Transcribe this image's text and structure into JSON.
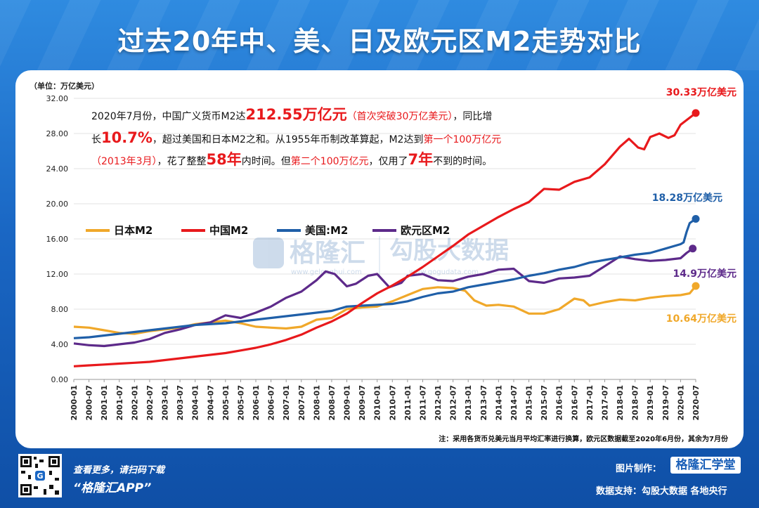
{
  "title": "过去20年中、美、日及欧元区M2走势对比",
  "unit": "（单位：万亿美元）",
  "annotation": {
    "p1": "2020年7月份，中国广义货币M2达",
    "h1": "212.55万亿元",
    "r1": "（首次突破30万亿美元）",
    "p2": "，同比增",
    "p3": "长",
    "h2": "10.7%",
    "p4": "，超过美国和日本M2之和。从1955年币制改革算起，M2达到",
    "r2": "第一个100万亿元",
    "r3": "（2013年3月）",
    "p5": "，花了整整",
    "h3": "58年",
    "p6": "内时间。但",
    "r4": "第二个100万亿元",
    "p7": "，仅用了",
    "h4": "7年",
    "p8": "不到的时间。"
  },
  "watermarks": {
    "a": "格隆汇",
    "a_url": "www.gelonghui.com",
    "b": "勾股大数据",
    "b_url": "www.gogudata.com"
  },
  "end_labels": {
    "china": "30.33万亿美元",
    "usa": "18.28万亿美元",
    "euro": "14.9万亿美元",
    "japan": "10.64万亿美元"
  },
  "note": "注：采用各货币兑美元当月平均汇率进行换算，欧元区数据截至2020年6月份，其余为7月份",
  "footer": {
    "scan_text": "查看更多，请扫码下载",
    "app_text": "“格隆汇APP”",
    "made_by_label": "图片制作：",
    "brand": "格隆汇学堂",
    "data_support": "数据支持：勾股大数据  各地央行"
  },
  "chart_data": {
    "type": "line",
    "title": "过去20年中、美、日及欧元区M2走势对比",
    "ylabel": "万亿美元",
    "ylim": [
      0,
      32
    ],
    "yticks": [
      "0.00",
      "4.00",
      "8.00",
      "12.00",
      "16.00",
      "20.00",
      "24.00",
      "28.00",
      "32.00"
    ],
    "x_start": 2000,
    "x_end": 2020.5,
    "categories": [
      "2000-01",
      "2000-07",
      "2001-01",
      "2001-07",
      "2002-01",
      "2002-07",
      "2003-01",
      "2003-07",
      "2004-01",
      "2004-07",
      "2005-01",
      "2005-07",
      "2006-01",
      "2006-07",
      "2007-01",
      "2007-07",
      "2008-01",
      "2008-07",
      "2009-01",
      "2009-07",
      "2010-01",
      "2010-07",
      "2011-01",
      "2011-07",
      "2012-01",
      "2012-07",
      "2013-01",
      "2013-07",
      "2014-01",
      "2014-07",
      "2015-01",
      "2015-07",
      "2016-01",
      "2016-07",
      "2017-01",
      "2017-07",
      "2018-01",
      "2018-07",
      "2019-01",
      "2019-07",
      "2020-01",
      "2020-07"
    ],
    "series": [
      {
        "name": "日本M2",
        "color": "#f0a82a",
        "x": [
          2000,
          2000.5,
          2001,
          2001.5,
          2002,
          2002.5,
          2003,
          2003.5,
          2004,
          2004.5,
          2005,
          2005.5,
          2006,
          2006.5,
          2007,
          2007.5,
          2008,
          2008.5,
          2009,
          2009.5,
          2010,
          2010.5,
          2011,
          2011.5,
          2012,
          2012.5,
          2012.9,
          2013.2,
          2013.6,
          2014,
          2014.5,
          2015,
          2015.5,
          2016,
          2016.5,
          2016.8,
          2017,
          2017.5,
          2018,
          2018.5,
          2019,
          2019.5,
          2020,
          2020.3,
          2020.5
        ],
        "y": [
          6.0,
          5.9,
          5.6,
          5.3,
          5.2,
          5.5,
          5.7,
          5.9,
          6.3,
          6.5,
          6.7,
          6.4,
          6.0,
          5.9,
          5.8,
          6.0,
          6.8,
          7.0,
          8.0,
          8.2,
          8.3,
          8.9,
          9.6,
          10.3,
          10.5,
          10.4,
          10.1,
          9.0,
          8.4,
          8.5,
          8.3,
          7.5,
          7.5,
          8.0,
          9.2,
          9.0,
          8.4,
          8.8,
          9.1,
          9.0,
          9.3,
          9.5,
          9.6,
          9.8,
          10.64
        ]
      },
      {
        "name": "中国M2",
        "color": "#e8191c",
        "x": [
          2000,
          2000.5,
          2001,
          2001.5,
          2002,
          2002.5,
          2003,
          2003.5,
          2004,
          2004.5,
          2005,
          2005.5,
          2006,
          2006.5,
          2007,
          2007.5,
          2008,
          2008.5,
          2009,
          2009.5,
          2010,
          2010.5,
          2011,
          2011.5,
          2012,
          2012.5,
          2013,
          2013.5,
          2014,
          2014.5,
          2015,
          2015.5,
          2016,
          2016.5,
          2017,
          2017.5,
          2018,
          2018.3,
          2018.6,
          2018.8,
          2019,
          2019.3,
          2019.6,
          2019.8,
          2020,
          2020.3,
          2020.5
        ],
        "y": [
          1.5,
          1.6,
          1.7,
          1.8,
          1.9,
          2.0,
          2.2,
          2.4,
          2.6,
          2.8,
          3.0,
          3.3,
          3.6,
          4.0,
          4.5,
          5.1,
          5.9,
          6.6,
          7.5,
          8.7,
          9.8,
          10.7,
          11.7,
          12.8,
          14.0,
          15.2,
          16.5,
          17.5,
          18.5,
          19.4,
          20.2,
          21.7,
          21.6,
          22.5,
          23.0,
          24.5,
          26.5,
          27.4,
          26.4,
          26.2,
          27.6,
          28.0,
          27.5,
          27.8,
          29.0,
          29.8,
          30.33
        ]
      },
      {
        "name": "美国:M2",
        "color": "#1f5fa8",
        "x": [
          2000,
          2000.5,
          2001,
          2001.5,
          2002,
          2002.5,
          2003,
          2003.5,
          2004,
          2004.5,
          2005,
          2005.5,
          2006,
          2006.5,
          2007,
          2007.5,
          2008,
          2008.5,
          2009,
          2009.5,
          2010,
          2010.5,
          2011,
          2011.5,
          2012,
          2012.5,
          2013,
          2013.5,
          2014,
          2014.5,
          2015,
          2015.5,
          2016,
          2016.5,
          2017,
          2017.5,
          2018,
          2018.5,
          2019,
          2019.5,
          2020,
          2020.1,
          2020.2,
          2020.3,
          2020.5
        ],
        "y": [
          4.7,
          4.8,
          5.0,
          5.2,
          5.4,
          5.6,
          5.8,
          6.0,
          6.2,
          6.3,
          6.4,
          6.6,
          6.8,
          7.0,
          7.2,
          7.4,
          7.6,
          7.8,
          8.3,
          8.4,
          8.5,
          8.6,
          8.9,
          9.4,
          9.8,
          10.0,
          10.5,
          10.8,
          11.1,
          11.4,
          11.8,
          12.1,
          12.5,
          12.8,
          13.3,
          13.6,
          13.9,
          14.2,
          14.4,
          14.9,
          15.4,
          15.6,
          16.8,
          17.8,
          18.28
        ]
      },
      {
        "name": "欧元区M2",
        "color": "#5d2a8a",
        "x": [
          2000,
          2000.5,
          2001,
          2001.5,
          2002,
          2002.5,
          2003,
          2003.5,
          2004,
          2004.5,
          2005,
          2005.5,
          2006,
          2006.5,
          2007,
          2007.5,
          2008,
          2008.3,
          2008.6,
          2009,
          2009.3,
          2009.7,
          2010,
          2010.4,
          2010.8,
          2011,
          2011.5,
          2012,
          2012.5,
          2013,
          2013.5,
          2014,
          2014.5,
          2015,
          2015.5,
          2016,
          2016.5,
          2017,
          2017.5,
          2018,
          2018.5,
          2019,
          2019.5,
          2020,
          2020.2,
          2020.4
        ],
        "y": [
          4.1,
          3.9,
          3.8,
          4.0,
          4.2,
          4.6,
          5.3,
          5.7,
          6.2,
          6.5,
          7.3,
          7.0,
          7.6,
          8.3,
          9.3,
          10.0,
          11.3,
          12.3,
          12.0,
          10.6,
          10.9,
          11.8,
          12.0,
          10.5,
          11.0,
          11.8,
          12.0,
          11.3,
          11.2,
          11.7,
          12.0,
          12.5,
          12.6,
          11.2,
          11.0,
          11.5,
          11.6,
          11.8,
          12.9,
          14.0,
          13.7,
          13.5,
          13.6,
          13.8,
          14.4,
          14.9
        ]
      }
    ]
  }
}
